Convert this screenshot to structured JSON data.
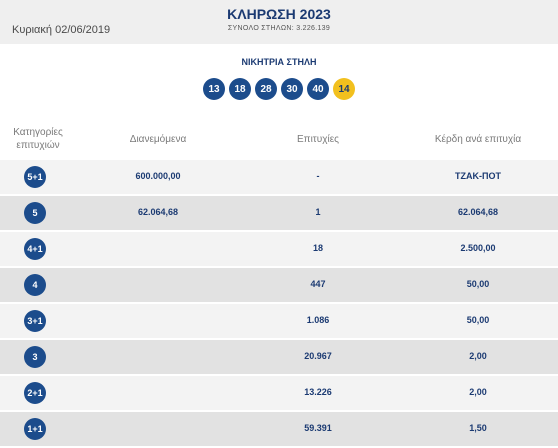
{
  "header": {
    "date": "Κυριακή 02/06/2019",
    "title": "ΚΛΗΡΩΣΗ 2023",
    "subtitle": "ΣΥΝΟΛΟ ΣΤΗΛΩΝ: 3.226.139"
  },
  "winning": {
    "label": "ΝΙΚΗΤΡΙΑ ΣΤΗΛΗ",
    "numbers": [
      "13",
      "18",
      "28",
      "30",
      "40"
    ],
    "joker": "14"
  },
  "columns": {
    "category": "Κατηγορίες επιτυχιών",
    "pool": "Διανεμόμενα",
    "wins": "Επιτυχίες",
    "prize": "Κέρδη ανά επιτυχία"
  },
  "rows": [
    {
      "cat": "5+1",
      "pool": "600.000,00",
      "wins": "-",
      "prize": "ΤΖΑΚ-ΠΟΤ"
    },
    {
      "cat": "5",
      "pool": "62.064,68",
      "wins": "1",
      "prize": "62.064,68"
    },
    {
      "cat": "4+1",
      "pool": "",
      "wins": "18",
      "prize": "2.500,00"
    },
    {
      "cat": "4",
      "pool": "",
      "wins": "447",
      "prize": "50,00"
    },
    {
      "cat": "3+1",
      "pool": "",
      "wins": "1.086",
      "prize": "50,00"
    },
    {
      "cat": "3",
      "pool": "",
      "wins": "20.967",
      "prize": "2,00"
    },
    {
      "cat": "2+1",
      "pool": "",
      "wins": "13.226",
      "prize": "2,00"
    },
    {
      "cat": "1+1",
      "pool": "",
      "wins": "59.391",
      "prize": "1,50"
    }
  ]
}
